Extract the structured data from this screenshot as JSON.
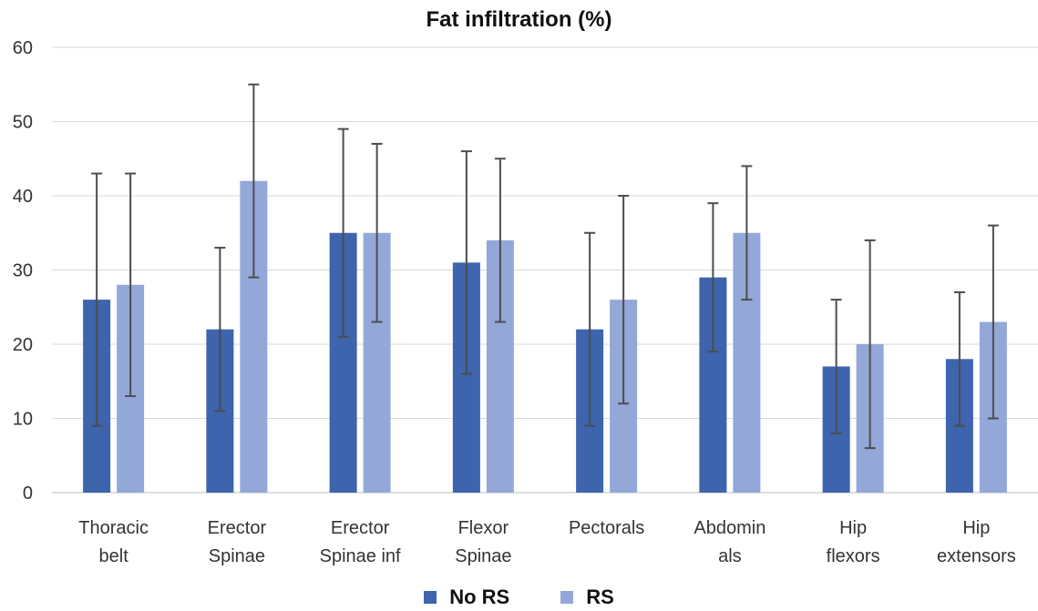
{
  "chart_data": {
    "type": "bar",
    "title": "Fat infiltration (%)",
    "xlabel": "",
    "ylabel": "",
    "ylim": [
      0,
      60
    ],
    "yticks": [
      0,
      10,
      20,
      30,
      40,
      50,
      60
    ],
    "grid": true,
    "legend_position": "bottom",
    "categories": [
      [
        "Thoracic",
        "belt"
      ],
      [
        "Erector",
        "Spinae"
      ],
      [
        "Erector",
        "Spinae inf"
      ],
      [
        "Flexor",
        "Spinae"
      ],
      [
        "Pectorals"
      ],
      [
        "Abdomin",
        "als"
      ],
      [
        "Hip",
        "flexors"
      ],
      [
        "Hip",
        "extensors"
      ]
    ],
    "series": [
      {
        "name": "No RS",
        "color": "#3d64ad",
        "values": [
          26,
          22,
          35,
          31,
          22,
          29,
          17,
          18
        ],
        "error_low": [
          9,
          11,
          21,
          16,
          9,
          19,
          8,
          9
        ],
        "error_high": [
          43,
          33,
          49,
          46,
          35,
          39,
          26,
          27
        ]
      },
      {
        "name": "RS",
        "color": "#93a8d8",
        "values": [
          28,
          42,
          35,
          34,
          26,
          35,
          20,
          23
        ],
        "error_low": [
          13,
          29,
          23,
          23,
          12,
          26,
          6,
          10
        ],
        "error_high": [
          43,
          55,
          47,
          45,
          40,
          44,
          34,
          36
        ]
      }
    ]
  }
}
